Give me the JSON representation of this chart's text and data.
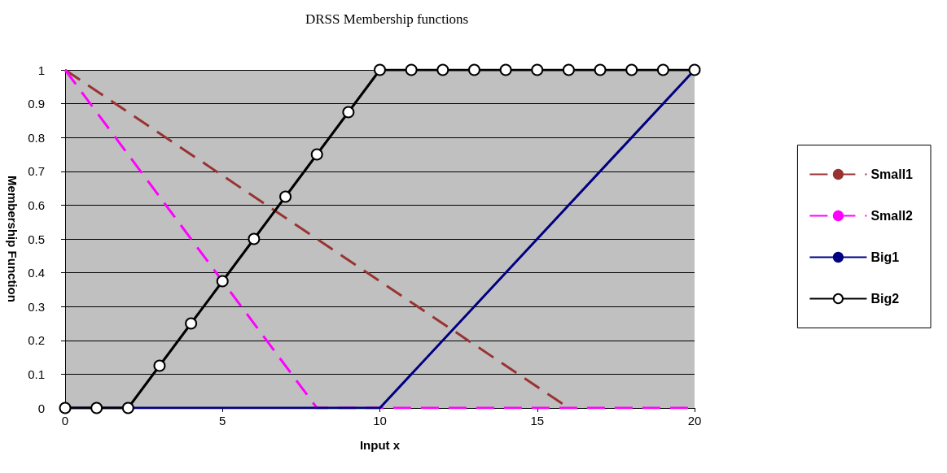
{
  "chart_data": {
    "type": "line",
    "title": "DRSS Membership functions",
    "xlabel": "Input x",
    "ylabel": "Membership Function",
    "xlim": [
      0,
      20
    ],
    "xticks": [
      0,
      5,
      10,
      15,
      20
    ],
    "ylim": [
      0,
      1
    ],
    "yticks": [
      0,
      0.1,
      0.2,
      0.3,
      0.4,
      0.5,
      0.6,
      0.7,
      0.8,
      0.9,
      1
    ],
    "grid": "y",
    "legend": "right",
    "series": [
      {
        "name": "Small1",
        "color": "#993333",
        "line_style": "dashed",
        "marker": "none",
        "x": [
          0,
          16
        ],
        "values": [
          1,
          0
        ]
      },
      {
        "name": "Small2",
        "color": "#ff00ff",
        "line_style": "dashed",
        "marker": "none",
        "x": [
          0,
          8,
          20
        ],
        "values": [
          1,
          0,
          0
        ]
      },
      {
        "name": "Big1",
        "color": "#000080",
        "line_style": "solid",
        "marker": "none",
        "x": [
          0,
          10,
          20
        ],
        "values": [
          0,
          0,
          1
        ]
      },
      {
        "name": "Big2",
        "color": "#000000",
        "line_style": "solid",
        "marker": "circle",
        "x": [
          0,
          1,
          2,
          3,
          4,
          5,
          6,
          7,
          8,
          9,
          10,
          11,
          12,
          13,
          14,
          15,
          16,
          17,
          18,
          19,
          20
        ],
        "values": [
          0,
          0,
          0,
          0.125,
          0.25,
          0.375,
          0.5,
          0.625,
          0.75,
          0.875,
          1,
          1,
          1,
          1,
          1,
          1,
          1,
          1,
          1,
          1,
          1
        ]
      }
    ]
  }
}
